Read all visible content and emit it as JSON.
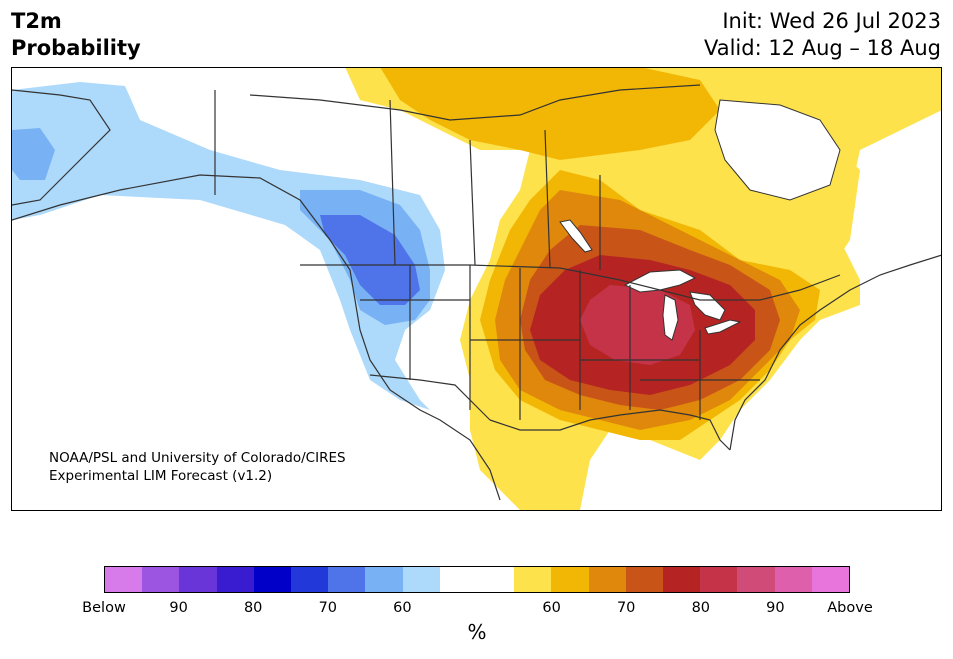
{
  "title": {
    "left_line1": "T2m",
    "left_line2": "Probability",
    "right_line1": "Init: Wed 26 Jul 2023",
    "right_line2": "Valid: 12 Aug – 18 Aug"
  },
  "credit": {
    "line1": "NOAA/PSL and University of Colorado/CIRES",
    "line2": "Experimental LIM Forecast (v1.2)"
  },
  "colorbar": {
    "label": "%",
    "colors": [
      "#d77aea",
      "#9c55e0",
      "#6a35d8",
      "#3a1cd0",
      "#0000c8",
      "#2338d8",
      "#4f73e8",
      "#78b2f4",
      "#add9fb",
      "#ffffff",
      "#ffffff",
      "#fee24b",
      "#f2b705",
      "#e0880b",
      "#c85517",
      "#b52423",
      "#c43348",
      "#d04b77",
      "#de5fac",
      "#e875dc"
    ],
    "ticks": [
      "Below",
      "90",
      "80",
      "70",
      "60",
      "60",
      "70",
      "80",
      "90",
      "Above"
    ]
  },
  "legend_colors": {
    "below_60": "#add9fb",
    "below_70": "#78b2f4",
    "below_80": "#4f73e8",
    "above_60": "#fee24b",
    "above_70": "#f2b705",
    "above_80": "#e0880b",
    "above_90": "#c85517",
    "above_95": "#b52423",
    "above_max": "#c43348"
  }
}
